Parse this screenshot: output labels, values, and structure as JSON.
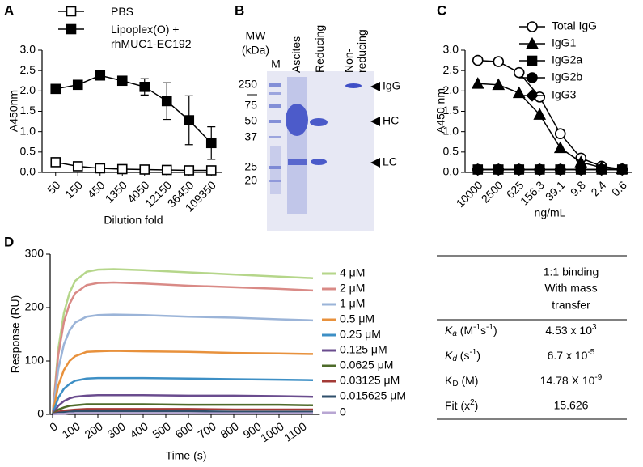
{
  "panels": [
    "A",
    "B",
    "C",
    "D"
  ],
  "chart_data": [
    {
      "type": "line",
      "x_label": "Dilution fold",
      "y_label": "A450nm",
      "categories": [
        "50",
        "150",
        "450",
        "1350",
        "4050",
        "12150",
        "36450",
        "109350"
      ],
      "ylim": [
        0,
        3
      ],
      "yticks": [
        {
          "value": 0,
          "label": "0.0"
        },
        0.5,
        {
          "value": 1,
          "label": "1.0"
        },
        1.5,
        {
          "value": 2,
          "label": "2.0"
        },
        2.5,
        {
          "value": 3,
          "label": "3.0"
        }
      ],
      "series": [
        {
          "name": "PBS",
          "color": "#000000",
          "marker": "square-open",
          "values": [
            0.25,
            0.15,
            0.1,
            0.08,
            0.07,
            0.06,
            0.05,
            0.05
          ]
        },
        {
          "name": "Lipoplex(O) + rhMUC1-EC192",
          "color": "#000000",
          "marker": "square",
          "values": [
            2.05,
            2.15,
            2.38,
            2.25,
            2.1,
            1.75,
            1.28,
            0.72
          ],
          "errors": [
            0.05,
            0.05,
            0.05,
            0.05,
            0.2,
            0.45,
            0.6,
            0.4
          ]
        }
      ]
    },
    {
      "type": "line",
      "x_label": "ng/mL",
      "y_label": "A450 nm",
      "categories": [
        "10000",
        "2500",
        "625",
        "156.3",
        "39.1",
        "9.8",
        "2.4",
        "0.6"
      ],
      "ylim": [
        0,
        3
      ],
      "yticks": [
        {
          "value": 0,
          "label": "0.0"
        },
        0.5,
        {
          "value": 1,
          "label": "1.0"
        },
        1.5,
        {
          "value": 2,
          "label": "2.0"
        },
        2.5,
        {
          "value": 3,
          "label": "3.0"
        }
      ],
      "series": [
        {
          "name": "Total IgG",
          "color": "#000000",
          "marker": "circle-open",
          "values": [
            2.75,
            2.72,
            2.45,
            1.85,
            0.95,
            0.35,
            0.15,
            0.08
          ]
        },
        {
          "name": "IgG1",
          "color": "#000000",
          "marker": "triangle",
          "values": [
            2.18,
            2.15,
            1.95,
            1.42,
            0.6,
            0.25,
            0.12,
            0.08
          ]
        },
        {
          "name": "IgG2a",
          "color": "#000000",
          "marker": "square",
          "values": [
            0.07,
            0.07,
            0.07,
            0.07,
            0.07,
            0.07,
            0.07,
            0.07
          ]
        },
        {
          "name": "IgG2b",
          "color": "#000000",
          "marker": "circle",
          "values": [
            0.07,
            0.07,
            0.07,
            0.07,
            0.07,
            0.07,
            0.07,
            0.07
          ]
        },
        {
          "name": "IgG3",
          "color": "#000000",
          "marker": "diamond",
          "values": [
            0.07,
            0.07,
            0.07,
            0.07,
            0.07,
            0.07,
            0.07,
            0.07
          ]
        }
      ]
    },
    {
      "type": "line",
      "x_label": "Time (s)",
      "y_label": "Response (RU)",
      "x": [
        0,
        25,
        50,
        75,
        100,
        150,
        200,
        270,
        400,
        600,
        800,
        1000,
        1150
      ],
      "xlim": [
        0,
        1180
      ],
      "xticks": [
        0,
        100,
        200,
        300,
        400,
        500,
        600,
        700,
        800,
        900,
        1000,
        1100
      ],
      "ylim": [
        0,
        300
      ],
      "yticks": [
        0,
        100,
        200,
        300
      ],
      "series": [
        {
          "name": "4 μM",
          "color": "#b5d68a",
          "values": [
            0,
            122,
            190,
            228,
            250,
            267,
            271,
            272,
            270,
            266,
            262,
            258,
            255
          ]
        },
        {
          "name": "2 μM",
          "color": "#d98a86",
          "values": [
            0,
            111,
            173,
            207,
            227,
            242,
            246,
            247,
            245,
            241,
            238,
            235,
            232
          ]
        },
        {
          "name": "1 μM",
          "color": "#9bb4d8",
          "values": [
            0,
            84,
            131,
            157,
            172,
            183,
            186,
            187,
            186,
            183,
            181,
            178,
            176
          ]
        },
        {
          "name": "0.5 μM",
          "color": "#e8913c",
          "values": [
            0,
            54,
            83,
            100,
            109,
            117,
            118,
            119,
            118,
            117,
            115,
            114,
            113
          ]
        },
        {
          "name": "0.25 μM",
          "color": "#3d8fc5",
          "values": [
            0,
            31,
            48,
            57,
            63,
            67,
            68,
            68,
            68,
            67,
            66,
            65,
            64
          ]
        },
        {
          "name": "0.125 μM",
          "color": "#6a4c8e",
          "values": [
            0,
            16,
            25,
            30,
            33,
            35,
            36,
            36,
            36,
            35,
            35,
            34,
            33
          ]
        },
        {
          "name": "0.0625 μM",
          "color": "#4e6b2a",
          "values": [
            0,
            9,
            13,
            16,
            17,
            19,
            19,
            19,
            19,
            18,
            18,
            18,
            17
          ]
        },
        {
          "name": "0.03125 μM",
          "color": "#a33a36",
          "values": [
            0,
            5,
            7,
            8,
            9,
            10,
            10,
            10,
            10,
            10,
            9,
            9,
            9
          ]
        },
        {
          "name": "0.015625 μM",
          "color": "#2f4f6b",
          "values": [
            0,
            3,
            4,
            5,
            6,
            6,
            6,
            6,
            6,
            6,
            5,
            5,
            5
          ]
        },
        {
          "name": "0",
          "color": "#b8a6d3",
          "values": [
            0,
            1,
            1,
            2,
            2,
            2,
            2,
            2,
            2,
            2,
            2,
            2,
            2
          ]
        }
      ]
    }
  ],
  "gel": {
    "mw_title": [
      "MW",
      "(kDa)"
    ],
    "lanes": [
      "M",
      "Ascites",
      "Reducing",
      "Non-reducing"
    ],
    "markers": [
      "250",
      "75",
      "50",
      "37",
      "25",
      "20"
    ],
    "bands": [
      "IgG",
      "HC",
      "LC"
    ]
  },
  "table": {
    "header": [
      "1:1 binding",
      "With mass",
      "transfer"
    ],
    "rows": [
      {
        "label": [
          "K",
          "a",
          " (M",
          "-1",
          "s",
          "-1",
          ")"
        ],
        "value": [
          "4.53 x 10",
          "3"
        ]
      },
      {
        "label": [
          "K",
          "d",
          " (s",
          "-1",
          ")"
        ],
        "value": [
          "6.7 x 10",
          "-5"
        ]
      },
      {
        "label": [
          "K",
          "D",
          " (M)"
        ],
        "value": [
          "14.78 X 10",
          "-9"
        ]
      },
      {
        "label": [
          "Fit (x",
          "2",
          ")"
        ],
        "value": [
          "15.626"
        ]
      }
    ]
  }
}
